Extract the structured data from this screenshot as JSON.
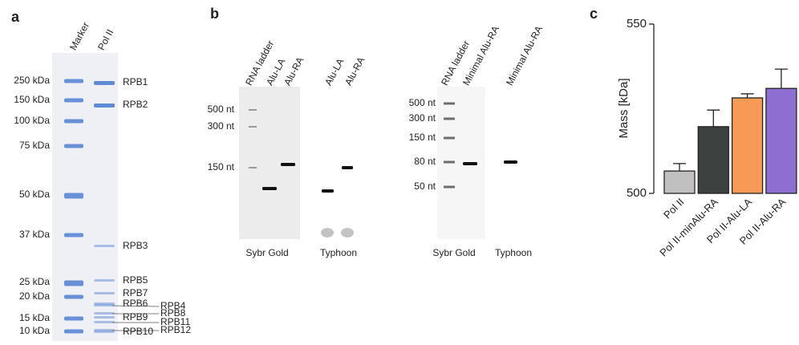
{
  "panel_a": {
    "label": "a",
    "lanes": [
      "Marker",
      "Pol II"
    ],
    "marker_sizes": [
      "250 kDa",
      "150 kDa",
      "100 kDa",
      "75 kDa",
      "50 kDa",
      "37 kDa",
      "25 kDa",
      "20 kDa",
      "15 kDa",
      "10 kDa"
    ],
    "subunits": [
      "RPB1",
      "RPB2",
      "RPB3",
      "RPB5",
      "RPB7",
      "RPB6",
      "RPB4",
      "RPB8",
      "RPB9",
      "RPB11",
      "RPB12",
      "RPB10"
    ]
  },
  "panel_b": {
    "label": "b",
    "gel_1": {
      "lanes": [
        "RNA ladder",
        "Alu-LA",
        "Alu-RA",
        "Alu-LA",
        "Alu-RA"
      ],
      "sizes": [
        "500 nt",
        "300 nt",
        "150 nt"
      ],
      "captions": [
        "Sybr Gold",
        "Typhoon"
      ]
    },
    "gel_2": {
      "lanes": [
        "RNA ladder",
        "Minimal Alu-RA",
        "Minimal Alu-RA"
      ],
      "sizes": [
        "500 nt",
        "300 nt",
        "150 nt",
        "80 nt",
        "50 nt"
      ],
      "captions": [
        "Sybr Gold",
        "Typhoon"
      ]
    }
  },
  "chart_data": {
    "type": "bar",
    "panel_label": "c",
    "y_label": "Mass [kDa]",
    "categories": [
      "Pol II",
      "Pol II-minAlu-RA",
      "Pol II-Alu-LA",
      "Pol II-Alu-RA"
    ],
    "values": [
      506.6,
      519.7,
      528.2,
      531.0
    ],
    "errors": [
      2.2,
      4.9,
      1.2,
      5.7
    ],
    "colors": [
      "#c0c0c0",
      "#3d4240",
      "#f79a55",
      "#8e6fd1"
    ],
    "ylim": [
      500,
      550
    ],
    "yticks": [
      500,
      550
    ]
  }
}
